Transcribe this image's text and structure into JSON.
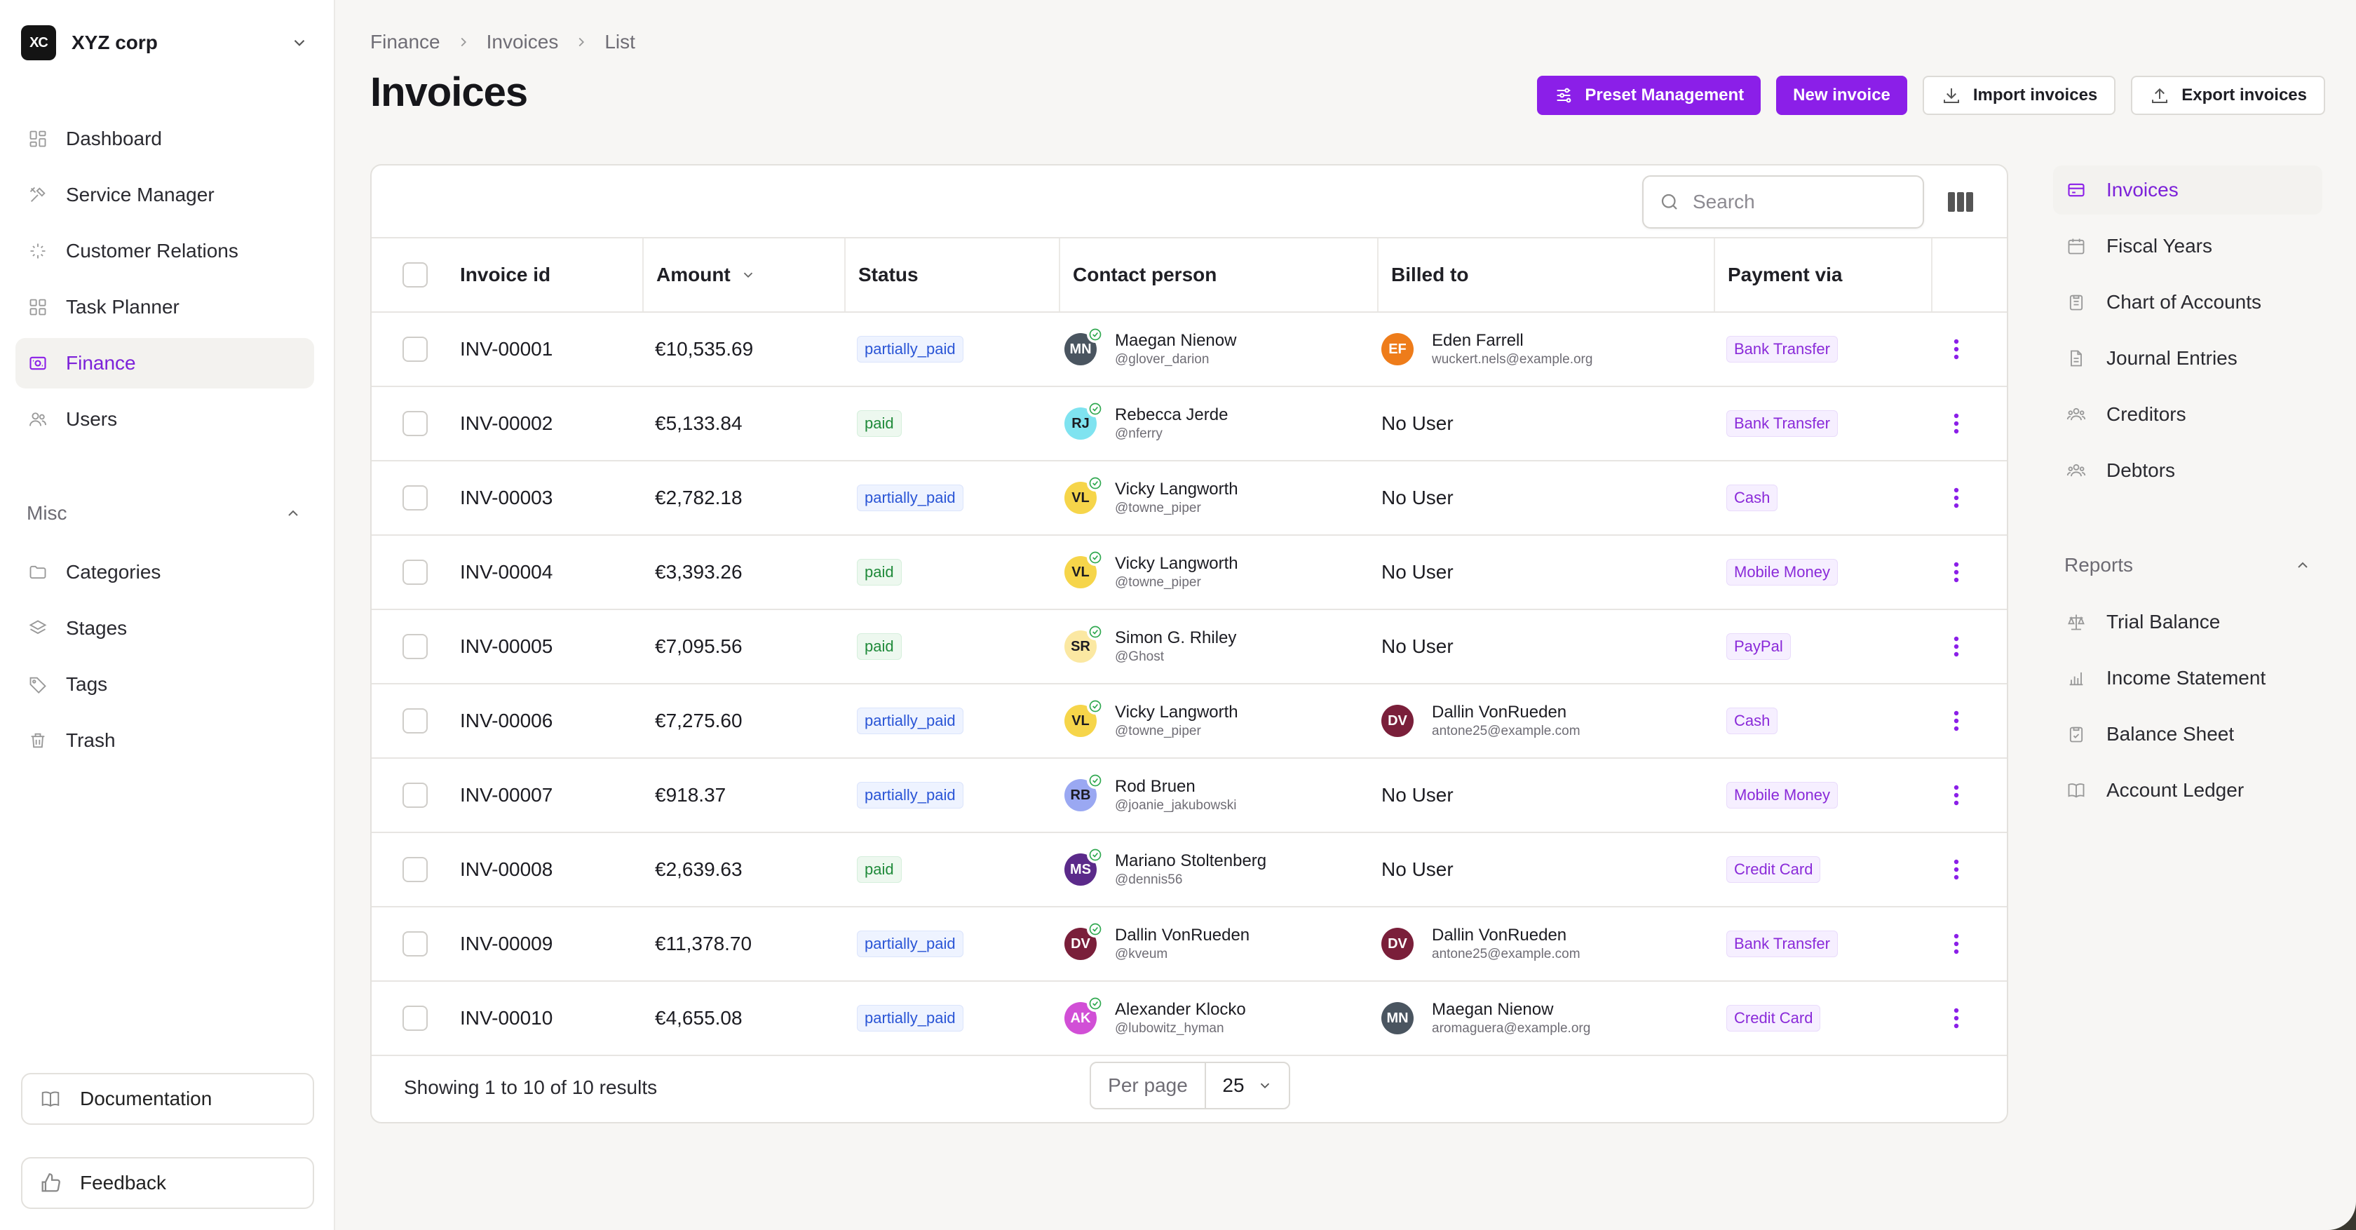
{
  "org": {
    "logo": "XC",
    "name": "XYZ corp"
  },
  "sidebar": {
    "main": [
      {
        "label": "Dashboard",
        "icon": "dashboard-icon"
      },
      {
        "label": "Service Manager",
        "icon": "tools-icon"
      },
      {
        "label": "Customer Relations",
        "icon": "sparkles-icon"
      },
      {
        "label": "Task Planner",
        "icon": "grid-icon"
      },
      {
        "label": "Finance",
        "icon": "finance-icon",
        "active": true
      },
      {
        "label": "Users",
        "icon": "users-icon"
      }
    ],
    "misc_label": "Misc",
    "misc": [
      {
        "label": "Categories",
        "icon": "folder-icon"
      },
      {
        "label": "Stages",
        "icon": "layers-icon"
      },
      {
        "label": "Tags",
        "icon": "tag-icon"
      },
      {
        "label": "Trash",
        "icon": "trash-icon"
      }
    ],
    "documentation": "Documentation",
    "feedback": "Feedback"
  },
  "breadcrumb": [
    "Finance",
    "Invoices",
    "List"
  ],
  "page_title": "Invoices",
  "actions": {
    "preset": "Preset Management",
    "new_invoice": "New invoice",
    "import": "Import invoices",
    "export": "Export invoices"
  },
  "search": {
    "placeholder": "Search"
  },
  "table": {
    "columns": {
      "invoice_id": "Invoice id",
      "amount": "Amount",
      "status": "Status",
      "contact": "Contact person",
      "billed_to": "Billed to",
      "payment": "Payment via"
    },
    "rows": [
      {
        "id": "INV-00001",
        "amount": "€10,535.69",
        "status": "partially_paid",
        "contact": {
          "initials": "MN",
          "name": "Maegan Nienow",
          "handle": "@glover_darion",
          "color": "#4a5560"
        },
        "billed": {
          "initials": "EF",
          "name": "Eden Farrell",
          "email": "wuckert.nels@example.org",
          "color": "#ee7c1a"
        },
        "payment": "Bank Transfer"
      },
      {
        "id": "INV-00002",
        "amount": "€5,133.84",
        "status": "paid",
        "contact": {
          "initials": "RJ",
          "name": "Rebecca Jerde",
          "handle": "@nferry",
          "color": "#7fe3f0",
          "dark": true
        },
        "billed": null,
        "payment": "Bank Transfer"
      },
      {
        "id": "INV-00003",
        "amount": "€2,782.18",
        "status": "partially_paid",
        "contact": {
          "initials": "VL",
          "name": "Vicky Langworth",
          "handle": "@towne_piper",
          "color": "#f6d54a",
          "dark": true
        },
        "billed": null,
        "payment": "Cash"
      },
      {
        "id": "INV-00004",
        "amount": "€3,393.26",
        "status": "paid",
        "contact": {
          "initials": "VL",
          "name": "Vicky Langworth",
          "handle": "@towne_piper",
          "color": "#f6d54a",
          "dark": true
        },
        "billed": null,
        "payment": "Mobile Money"
      },
      {
        "id": "INV-00005",
        "amount": "€7,095.56",
        "status": "paid",
        "contact": {
          "initials": "SR",
          "name": "Simon G. Rhiley",
          "handle": "@Ghost",
          "color": "#fbe8a2",
          "dark": true
        },
        "billed": null,
        "payment": "PayPal"
      },
      {
        "id": "INV-00006",
        "amount": "€7,275.60",
        "status": "partially_paid",
        "contact": {
          "initials": "VL",
          "name": "Vicky Langworth",
          "handle": "@towne_piper",
          "color": "#f6d54a",
          "dark": true
        },
        "billed": {
          "initials": "DV",
          "name": "Dallin VonRueden",
          "email": "antone25@example.com",
          "color": "#7a1f3a"
        },
        "payment": "Cash"
      },
      {
        "id": "INV-00007",
        "amount": "€918.37",
        "status": "partially_paid",
        "contact": {
          "initials": "RB",
          "name": "Rod Bruen",
          "handle": "@joanie_jakubowski",
          "color": "#9aa8f2",
          "dark": true
        },
        "billed": null,
        "payment": "Mobile Money"
      },
      {
        "id": "INV-00008",
        "amount": "€2,639.63",
        "status": "paid",
        "contact": {
          "initials": "MS",
          "name": "Mariano Stoltenberg",
          "handle": "@dennis56",
          "color": "#5b2a8a"
        },
        "billed": null,
        "payment": "Credit Card"
      },
      {
        "id": "INV-00009",
        "amount": "€11,378.70",
        "status": "partially_paid",
        "contact": {
          "initials": "DV",
          "name": "Dallin VonRueden",
          "handle": "@kveum",
          "color": "#7a1f3a"
        },
        "billed": {
          "initials": "DV",
          "name": "Dallin VonRueden",
          "email": "antone25@example.com",
          "color": "#7a1f3a"
        },
        "payment": "Bank Transfer"
      },
      {
        "id": "INV-00010",
        "amount": "€4,655.08",
        "status": "partially_paid",
        "contact": {
          "initials": "AK",
          "name": "Alexander Klocko",
          "handle": "@lubowitz_hyman",
          "color": "#d14fd6"
        },
        "billed": {
          "initials": "MN",
          "name": "Maegan Nienow",
          "email": "aromaguera@example.org",
          "color": "#4a5560"
        },
        "payment": "Credit Card"
      }
    ],
    "no_user": "No User"
  },
  "pagination": {
    "showing": "Showing 1 to 10 of 10 results",
    "per_page_label": "Per page",
    "per_page_value": "25"
  },
  "right_nav": {
    "items": [
      {
        "label": "Invoices",
        "icon": "card-icon",
        "active": true
      },
      {
        "label": "Fiscal Years",
        "icon": "calendar-icon"
      },
      {
        "label": "Chart of Accounts",
        "icon": "clipboard-icon"
      },
      {
        "label": "Journal Entries",
        "icon": "document-icon"
      },
      {
        "label": "Creditors",
        "icon": "users-group-icon"
      },
      {
        "label": "Debtors",
        "icon": "users-group-icon"
      }
    ],
    "reports_label": "Reports",
    "reports": [
      {
        "label": "Trial Balance",
        "icon": "scale-icon"
      },
      {
        "label": "Income Statement",
        "icon": "bar-chart-icon"
      },
      {
        "label": "Balance Sheet",
        "icon": "clipboard-check-icon"
      },
      {
        "label": "Account Ledger",
        "icon": "book-icon"
      }
    ]
  },
  "colors": {
    "accent": "#8b1fe8",
    "active_text": "#7c22d9",
    "partial": "#2a55d6",
    "paid": "#1f8a3a",
    "verified": "#2fa84f"
  }
}
